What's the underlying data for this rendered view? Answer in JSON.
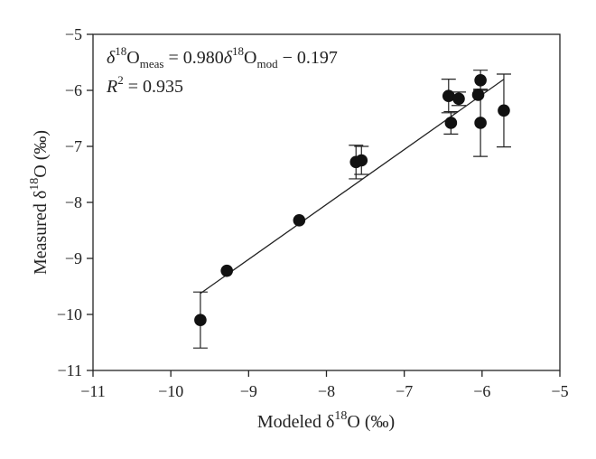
{
  "chart_data": {
    "type": "scatter",
    "title": "",
    "xlabel": {
      "pre": "Modeled δ",
      "sup": "18",
      "post": "O (‰)"
    },
    "ylabel": {
      "pre": "Measured δ",
      "sup": "18",
      "post": "O (‰)"
    },
    "xlim": [
      -11,
      -5
    ],
    "ylim": [
      -11,
      -5
    ],
    "xticks": [
      -11,
      -10,
      -9,
      -8,
      -7,
      -6,
      -5
    ],
    "yticks": [
      -11,
      -10,
      -9,
      -8,
      -7,
      -6,
      -5
    ],
    "xtick_labels": [
      "−11",
      "−10",
      "−9",
      "−8",
      "−7",
      "−6",
      "−5"
    ],
    "ytick_labels": [
      "−11",
      "−10",
      "−9",
      "−8",
      "−7",
      "−6",
      "−5"
    ],
    "grid": false,
    "points": [
      {
        "x": -9.62,
        "y": -10.1,
        "err": 0.5
      },
      {
        "x": -9.28,
        "y": -9.22,
        "err": 0.0
      },
      {
        "x": -8.35,
        "y": -8.32,
        "err": 0.0
      },
      {
        "x": -7.62,
        "y": -7.28,
        "err": 0.3
      },
      {
        "x": -7.55,
        "y": -7.25,
        "err": 0.25
      },
      {
        "x": -6.43,
        "y": -6.1,
        "err": 0.3
      },
      {
        "x": -6.4,
        "y": -6.58,
        "err": 0.2
      },
      {
        "x": -6.3,
        "y": -6.15,
        "err": 0.12
      },
      {
        "x": -6.05,
        "y": -6.08,
        "err": 0.0
      },
      {
        "x": -6.02,
        "y": -5.82,
        "err": 0.18
      },
      {
        "x": -6.02,
        "y": -6.58,
        "err": 0.6
      },
      {
        "x": -5.72,
        "y": -6.36,
        "err": 0.65
      }
    ],
    "fit": {
      "slope": 0.98,
      "intercept": -0.197,
      "x_range": [
        -9.62,
        -5.72
      ]
    },
    "annotations": {
      "equation": {
        "delta1": "δ",
        "sup1": "18",
        "o1": "O",
        "sub1": "meas",
        "mid": " = 0.980",
        "delta2": "δ",
        "sup2": "18",
        "o2": "O",
        "sub2": "mod",
        "tail": " − 0.197"
      },
      "r2": {
        "r": "R",
        "sup": "2",
        "rest": " = 0.935"
      }
    }
  }
}
